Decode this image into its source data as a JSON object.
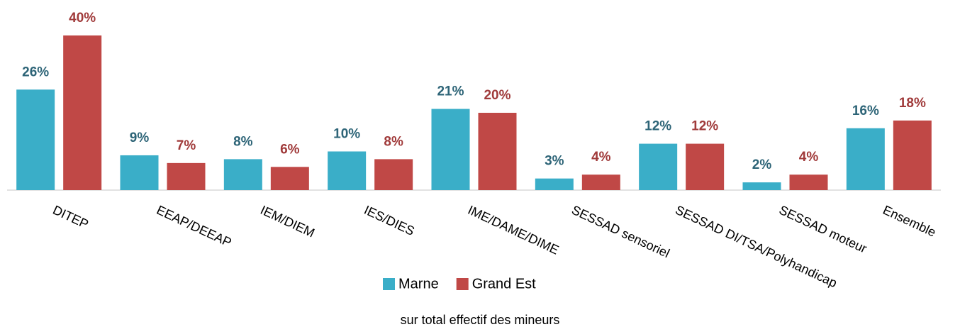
{
  "chart_data": {
    "type": "bar",
    "categories": [
      "DITEP",
      "EEAP/DEEAP",
      "IEM/DIEM",
      "IES/DIES",
      "IME/DAME/DIME",
      "SESSAD sensoriel",
      "SESSAD DI/TSA/Polyhandicap",
      "SESSAD moteur",
      "Ensemble"
    ],
    "series": [
      {
        "name": "Marne",
        "color": "#3aaec8",
        "label_color": "#2d6477",
        "values": [
          26,
          9,
          8,
          10,
          21,
          3,
          12,
          2,
          16
        ],
        "value_labels": [
          "26%",
          "9%",
          "8%",
          "10%",
          "21%",
          "3%",
          "12%",
          "2%",
          "16%"
        ]
      },
      {
        "name": "Grand Est",
        "color": "#c04846",
        "label_color": "#a03a3a",
        "values": [
          40,
          7,
          6,
          8,
          20,
          4,
          12,
          4,
          18
        ],
        "value_labels": [
          "40%",
          "7%",
          "6%",
          "8%",
          "20%",
          "4%",
          "12%",
          "4%",
          "18%"
        ]
      }
    ],
    "xlabel": "sur total effectif des mineurs",
    "legend": "bottom"
  }
}
